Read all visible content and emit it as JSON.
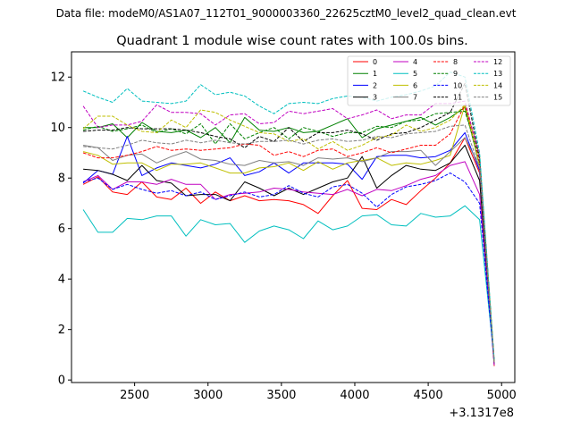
{
  "figure": {
    "suptitle": "Data file: modeM0/AS1A07_112T01_9000003360_22625cztM0_level2_quad_clean.evt"
  },
  "chart_data": {
    "type": "line",
    "title": "Quadrant 1 module wise count rates with 100.0s bins.",
    "xlabel": "",
    "ylabel": "",
    "x_offset_label": "+3.1317e8",
    "xlim": [
      2070,
      5090
    ],
    "ylim": [
      -0.1,
      13.0
    ],
    "xticks": [
      2500,
      3000,
      3500,
      4000,
      4500,
      5000
    ],
    "yticks": [
      0,
      2,
      4,
      6,
      8,
      10,
      12
    ],
    "grid": false,
    "legend_position": "top-right",
    "x": [
      2150,
      2250,
      2350,
      2450,
      2550,
      2650,
      2750,
      2850,
      2950,
      3050,
      3150,
      3250,
      3350,
      3450,
      3550,
      3650,
      3750,
      3850,
      3950,
      4050,
      4150,
      4250,
      4350,
      4450,
      4550,
      4650,
      4750,
      4850,
      4950
    ],
    "series": [
      {
        "name": "0",
        "color": "#ff0000",
        "dash": "solid",
        "values": [
          7.75,
          8.05,
          7.45,
          7.35,
          7.85,
          7.25,
          7.15,
          7.6,
          7.0,
          7.45,
          7.1,
          7.3,
          7.1,
          7.15,
          7.1,
          6.95,
          6.6,
          7.3,
          7.9,
          6.8,
          6.75,
          7.15,
          6.95,
          7.5,
          8.0,
          8.6,
          9.6,
          8.2,
          0.55
        ]
      },
      {
        "name": "1",
        "color": "#008000",
        "dash": "solid",
        "values": [
          10.0,
          10.0,
          10.15,
          9.6,
          10.2,
          9.85,
          9.8,
          9.9,
          9.6,
          10.0,
          9.4,
          10.4,
          9.9,
          9.85,
          10.0,
          9.8,
          9.85,
          10.1,
          10.35,
          9.6,
          9.95,
          10.1,
          10.25,
          10.4,
          10.1,
          10.4,
          10.8,
          8.5,
          0.7
        ]
      },
      {
        "name": "2",
        "color": "#0000ff",
        "dash": "solid",
        "values": [
          7.8,
          8.3,
          8.15,
          9.65,
          8.1,
          8.4,
          8.6,
          8.5,
          8.4,
          8.55,
          8.8,
          8.1,
          8.25,
          8.6,
          8.2,
          8.6,
          8.6,
          8.6,
          8.55,
          7.95,
          8.85,
          8.9,
          8.9,
          8.8,
          8.85,
          9.1,
          9.8,
          8.3,
          0.6
        ]
      },
      {
        "name": "3",
        "color": "#000000",
        "dash": "solid",
        "values": [
          8.35,
          8.3,
          8.15,
          7.9,
          8.5,
          7.9,
          7.8,
          7.3,
          7.35,
          7.35,
          7.1,
          7.85,
          7.6,
          7.3,
          7.6,
          7.35,
          7.6,
          7.85,
          8.0,
          8.85,
          7.6,
          8.1,
          8.5,
          8.35,
          8.3,
          8.6,
          9.3,
          7.9,
          0.65
        ]
      },
      {
        "name": "4",
        "color": "#c000c0",
        "dash": "solid",
        "values": [
          7.85,
          8.1,
          7.55,
          7.85,
          7.85,
          7.75,
          7.95,
          7.75,
          7.75,
          7.15,
          7.35,
          7.4,
          7.45,
          7.6,
          7.55,
          7.45,
          7.4,
          7.35,
          7.55,
          7.3,
          7.55,
          7.5,
          7.7,
          7.95,
          8.1,
          8.5,
          8.65,
          7.35,
          0.6
        ]
      },
      {
        "name": "5",
        "color": "#00bfbf",
        "dash": "solid",
        "values": [
          6.75,
          5.85,
          5.85,
          6.4,
          6.35,
          6.5,
          6.5,
          5.7,
          6.35,
          6.15,
          6.2,
          5.45,
          5.9,
          6.1,
          5.95,
          5.6,
          6.3,
          5.95,
          6.1,
          6.5,
          6.55,
          6.15,
          6.1,
          6.6,
          6.45,
          6.5,
          6.9,
          6.35,
          0.8
        ]
      },
      {
        "name": "6",
        "color": "#bfbf00",
        "dash": "solid",
        "values": [
          9.05,
          8.9,
          8.55,
          8.6,
          8.6,
          8.3,
          8.55,
          8.55,
          8.6,
          8.4,
          8.2,
          8.2,
          8.4,
          8.45,
          8.6,
          8.3,
          8.65,
          8.35,
          8.6,
          8.7,
          8.8,
          8.5,
          8.6,
          8.55,
          8.7,
          8.9,
          10.9,
          8.9,
          0.75
        ]
      },
      {
        "name": "7",
        "color": "#808080",
        "dash": "solid",
        "values": [
          9.3,
          9.2,
          8.7,
          8.9,
          8.95,
          8.6,
          8.85,
          9.05,
          8.75,
          8.7,
          8.55,
          8.5,
          8.7,
          8.6,
          8.65,
          8.5,
          8.8,
          8.75,
          8.8,
          8.65,
          8.8,
          9.05,
          9.05,
          9.1,
          8.5,
          9.05,
          9.6,
          8.45,
          0.7
        ]
      },
      {
        "name": "8",
        "color": "#ff0000",
        "dash": "dashed",
        "values": [
          9.0,
          8.8,
          8.8,
          8.9,
          9.05,
          9.25,
          9.1,
          9.15,
          9.1,
          9.15,
          9.2,
          9.35,
          9.3,
          8.9,
          9.05,
          8.85,
          9.1,
          9.15,
          8.85,
          9.0,
          9.2,
          9.0,
          9.15,
          9.3,
          9.3,
          9.75,
          10.9,
          8.6,
          0.7
        ]
      },
      {
        "name": "9",
        "color": "#008000",
        "dash": "dashed",
        "values": [
          9.9,
          10.05,
          9.85,
          9.95,
          10.1,
          9.8,
          9.95,
          9.75,
          10.15,
          9.35,
          10.15,
          9.55,
          9.8,
          10.0,
          9.55,
          10.0,
          9.85,
          9.65,
          9.8,
          9.8,
          10.05,
          10.0,
          10.25,
          10.3,
          10.55,
          10.6,
          10.65,
          8.8,
          0.7
        ]
      },
      {
        "name": "10",
        "color": "#0000ff",
        "dash": "dashed",
        "values": [
          7.85,
          8.0,
          7.55,
          7.75,
          7.55,
          7.4,
          7.5,
          7.3,
          7.45,
          7.15,
          7.3,
          7.45,
          7.25,
          7.35,
          7.7,
          7.4,
          7.25,
          7.65,
          7.75,
          7.4,
          6.85,
          7.35,
          7.65,
          7.75,
          7.9,
          8.2,
          7.85,
          7.0,
          0.7
        ]
      },
      {
        "name": "11",
        "color": "#000000",
        "dash": "dashed",
        "values": [
          9.85,
          9.9,
          9.9,
          10.0,
          9.95,
          9.95,
          9.95,
          9.9,
          9.8,
          9.65,
          9.55,
          9.2,
          9.65,
          9.45,
          10.0,
          9.45,
          9.8,
          9.8,
          9.9,
          9.75,
          9.5,
          9.75,
          9.8,
          10.0,
          10.3,
          10.6,
          11.75,
          8.75,
          0.75
        ]
      },
      {
        "name": "12",
        "color": "#c000c0",
        "dash": "dashed",
        "values": [
          10.85,
          10.0,
          10.1,
          10.1,
          10.25,
          10.9,
          10.6,
          10.6,
          10.55,
          10.1,
          10.5,
          10.55,
          10.15,
          10.2,
          10.65,
          10.55,
          10.65,
          10.75,
          10.35,
          10.5,
          10.7,
          10.35,
          10.5,
          10.5,
          10.95,
          10.95,
          11.05,
          8.85,
          0.7
        ]
      },
      {
        "name": "13",
        "color": "#00bfbf",
        "dash": "dashed",
        "values": [
          11.45,
          11.2,
          11.0,
          11.55,
          11.05,
          11.0,
          10.95,
          11.05,
          11.7,
          11.3,
          11.4,
          11.25,
          10.85,
          10.55,
          10.95,
          11.0,
          10.95,
          11.15,
          11.25,
          11.2,
          11.05,
          11.2,
          11.3,
          11.45,
          11.65,
          12.2,
          12.0,
          9.0,
          0.8
        ]
      },
      {
        "name": "14",
        "color": "#bfbf00",
        "dash": "dashed",
        "values": [
          9.95,
          10.45,
          10.45,
          10.1,
          9.85,
          9.8,
          10.3,
          10.0,
          10.7,
          10.6,
          10.3,
          10.05,
          9.8,
          9.75,
          9.45,
          9.55,
          9.15,
          9.45,
          9.1,
          9.3,
          9.6,
          9.7,
          10.1,
          9.85,
          10.0,
          10.3,
          10.9,
          8.5,
          0.7
        ]
      },
      {
        "name": "15",
        "color": "#808080",
        "dash": "dashed",
        "values": [
          9.25,
          9.2,
          9.15,
          9.3,
          9.5,
          9.4,
          9.35,
          9.5,
          9.4,
          9.5,
          9.4,
          9.35,
          9.45,
          9.45,
          9.5,
          9.35,
          9.5,
          9.55,
          9.45,
          9.5,
          9.65,
          9.6,
          9.75,
          9.8,
          9.85,
          10.05,
          10.1,
          8.4,
          0.7
        ]
      }
    ]
  }
}
